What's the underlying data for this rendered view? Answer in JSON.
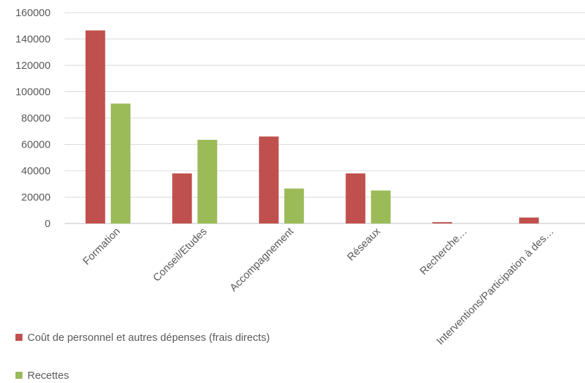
{
  "chart_data": {
    "type": "bar",
    "categories": [
      "Formation",
      "Conseil/Etudes",
      "Accompagnement",
      "Réseaux",
      "Recherche…",
      "Interventions/Participation à des…"
    ],
    "series": [
      {
        "name": "Coût de personnel et autres dépenses (frais directs)",
        "color": "#c0504d",
        "values": [
          146500,
          38000,
          66000,
          38000,
          1000,
          4500
        ]
      },
      {
        "name": "Recettes",
        "color": "#9bbb59",
        "values": [
          91000,
          63500,
          26500,
          25000,
          0,
          0
        ]
      }
    ],
    "ylim": [
      0,
      160000
    ],
    "yticks": [
      "0",
      "20000",
      "40000",
      "60000",
      "80000",
      "100000",
      "120000",
      "140000",
      "160000"
    ],
    "grid": true,
    "legend": "bottom-left"
  }
}
